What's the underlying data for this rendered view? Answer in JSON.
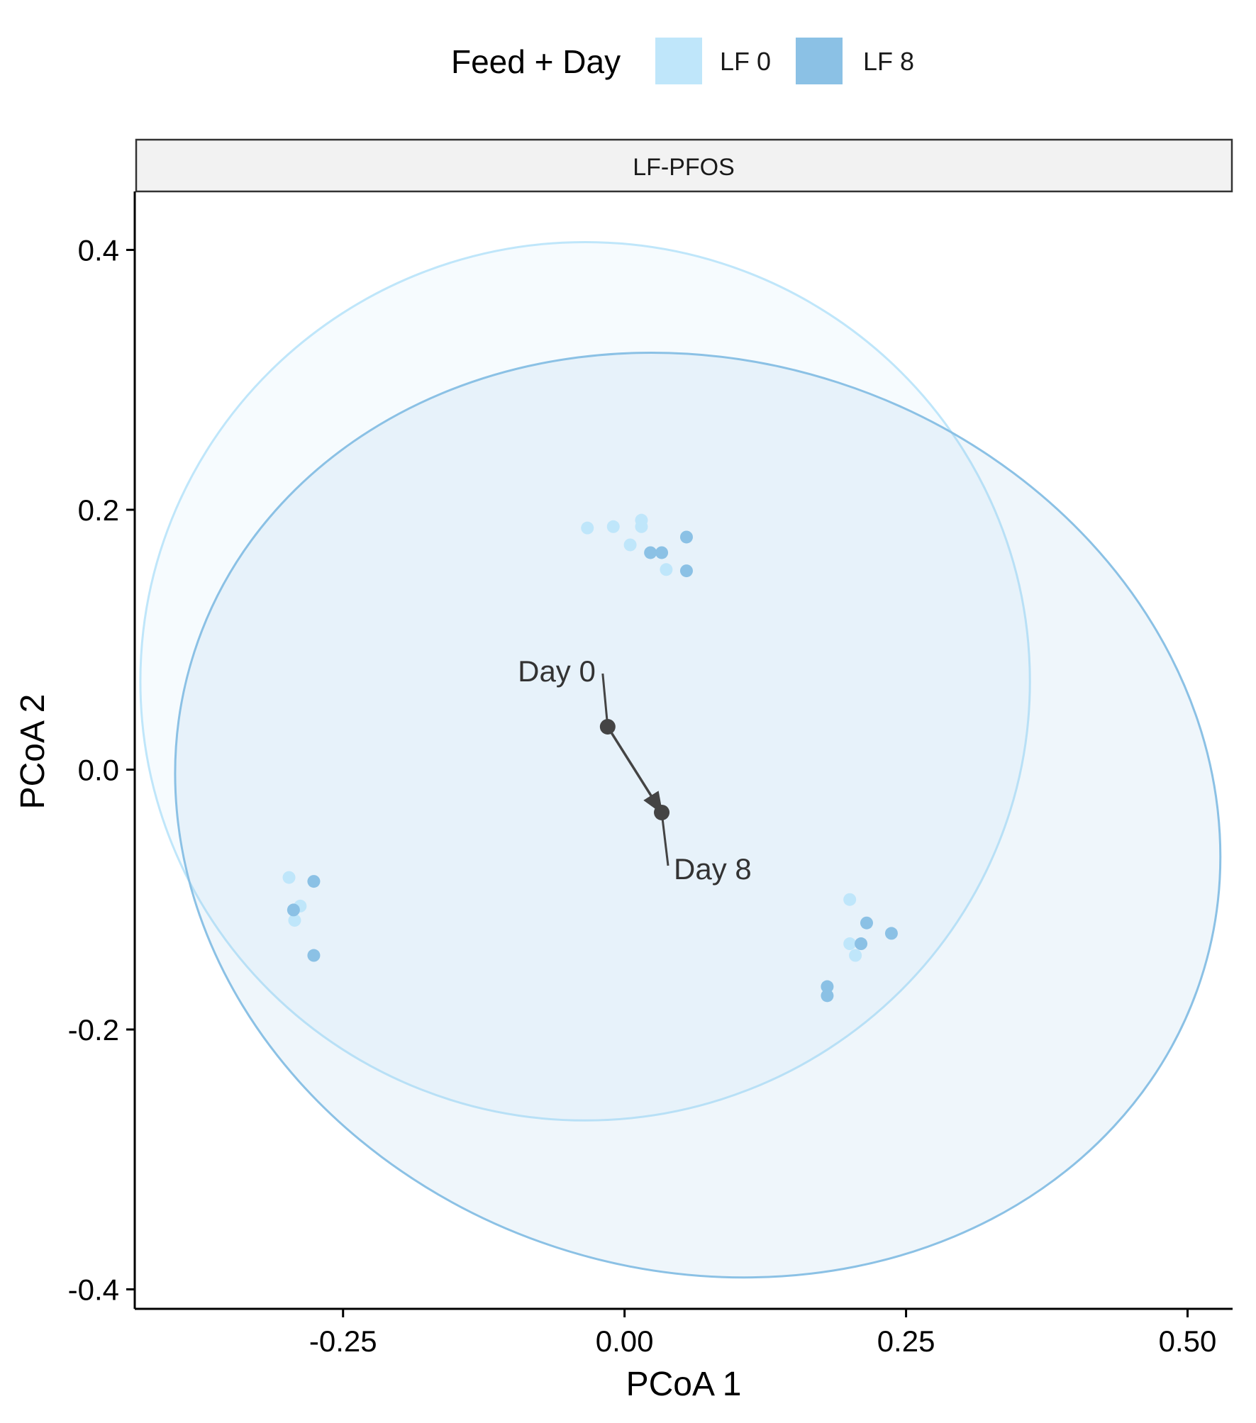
{
  "chart_data": {
    "type": "scatter",
    "title": "",
    "facet_label": "LF-PFOS",
    "xlabel": "PCoA 1",
    "ylabel": "PCoA 2",
    "xlim": [
      -0.435,
      0.54
    ],
    "ylim": [
      -0.415,
      0.445
    ],
    "x_ticks": [
      -0.25,
      0.0,
      0.25,
      0.5
    ],
    "x_tick_labels": [
      "-0.25",
      "0.00",
      "0.25",
      "0.50"
    ],
    "y_ticks": [
      0.4,
      0.2,
      0.0,
      -0.2,
      -0.4
    ],
    "y_tick_labels": [
      "0.4",
      "0.2",
      "0.0",
      "-0.2",
      "-0.4"
    ],
    "grid": false,
    "legend": {
      "title": "Feed + Day",
      "position": "top",
      "entries": [
        {
          "label": "LF 0",
          "color": "#bfe6fa"
        },
        {
          "label": "LF 8",
          "color": "#8bc1e5"
        }
      ]
    },
    "series": [
      {
        "name": "LF 0",
        "color": "#bfe6fa",
        "points": [
          [
            -0.033,
            0.186
          ],
          [
            -0.01,
            0.187
          ],
          [
            0.015,
            0.192
          ],
          [
            0.015,
            0.187
          ],
          [
            0.005,
            0.173
          ],
          [
            0.037,
            0.154
          ],
          [
            -0.298,
            -0.083
          ],
          [
            -0.288,
            -0.105
          ],
          [
            -0.293,
            -0.116
          ],
          [
            0.2,
            -0.1
          ],
          [
            0.2,
            -0.134
          ],
          [
            0.205,
            -0.143
          ]
        ],
        "ellipse": {
          "cx": -0.035,
          "cy": 0.068,
          "rx": 0.395,
          "ry": 0.338,
          "angle_deg": 0
        }
      },
      {
        "name": "LF 8",
        "color": "#8bc1e5",
        "points": [
          [
            0.055,
            0.179
          ],
          [
            0.023,
            0.167
          ],
          [
            0.033,
            0.167
          ],
          [
            0.055,
            0.153
          ],
          [
            -0.276,
            -0.086
          ],
          [
            -0.294,
            -0.108
          ],
          [
            -0.276,
            -0.143
          ],
          [
            0.215,
            -0.118
          ],
          [
            0.21,
            -0.134
          ],
          [
            0.237,
            -0.126
          ],
          [
            0.18,
            -0.167
          ],
          [
            0.18,
            -0.174
          ]
        ],
        "ellipse": {
          "cx": 0.065,
          "cy": -0.035,
          "rx": 0.47,
          "ry": 0.35,
          "angle_deg": -18
        }
      }
    ],
    "centroid_path": {
      "color": "#444444",
      "from": {
        "label": "Day 0",
        "x": -0.015,
        "y": 0.033
      },
      "to": {
        "label": "Day 8",
        "x": 0.033,
        "y": -0.033
      }
    }
  }
}
